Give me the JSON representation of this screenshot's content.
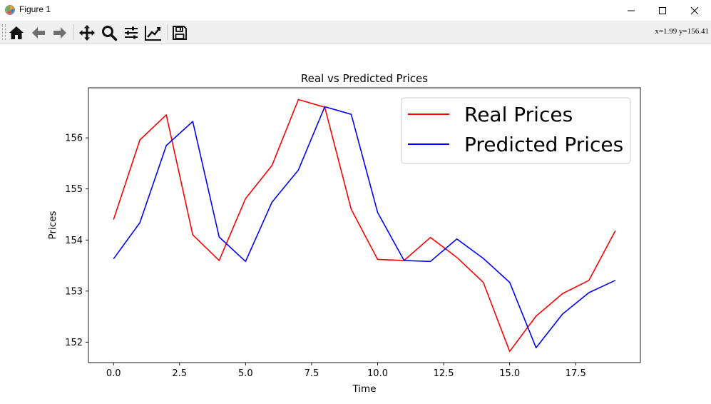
{
  "window": {
    "title": "Figure 1",
    "controls": [
      "minimize",
      "maximize",
      "close"
    ]
  },
  "toolbar": {
    "tools": [
      {
        "name": "home-icon",
        "tooltip": "Home"
      },
      {
        "name": "back-arrow-icon",
        "tooltip": "Back"
      },
      {
        "name": "forward-arrow-icon",
        "tooltip": "Forward"
      },
      {
        "name": "pan-icon",
        "tooltip": "Pan"
      },
      {
        "name": "zoom-icon",
        "tooltip": "Zoom"
      },
      {
        "name": "subplots-icon",
        "tooltip": "Subplots"
      },
      {
        "name": "axes-edit-icon",
        "tooltip": "Customize"
      },
      {
        "name": "save-icon",
        "tooltip": "Save"
      }
    ],
    "coords": "x=1.99 y=156.41"
  },
  "chart_data": {
    "type": "line",
    "title": "Real vs Predicted Prices",
    "xlabel": "Time",
    "ylabel": "Prices",
    "xlim": [
      -0.95,
      19.95
    ],
    "ylim": [
      151.6,
      156.98
    ],
    "xticks": [
      0.0,
      2.5,
      5.0,
      7.5,
      10.0,
      12.5,
      15.0,
      17.5
    ],
    "xtick_labels": [
      "0.0",
      "2.5",
      "5.0",
      "7.5",
      "10.0",
      "12.5",
      "15.0",
      "17.5"
    ],
    "yticks": [
      152,
      153,
      154,
      155,
      156
    ],
    "ytick_labels": [
      "152",
      "153",
      "154",
      "155",
      "156"
    ],
    "grid": false,
    "legend": {
      "position": "upper-right"
    },
    "x": [
      0,
      1,
      2,
      3,
      4,
      5,
      6,
      7,
      8,
      9,
      10,
      11,
      12,
      13,
      14,
      15,
      16,
      17,
      18,
      19
    ],
    "series": [
      {
        "name": "Real Prices",
        "color": "#ff0000",
        "values": [
          154.4,
          155.96,
          156.45,
          154.1,
          153.6,
          154.81,
          155.46,
          156.75,
          156.6,
          154.6,
          153.62,
          153.6,
          154.05,
          153.66,
          153.17,
          151.82,
          152.51,
          152.95,
          153.21,
          154.18
        ]
      },
      {
        "name": "Predicted Prices",
        "color": "#0000ff",
        "values": [
          153.63,
          154.34,
          155.85,
          156.32,
          154.06,
          153.58,
          154.74,
          155.37,
          156.61,
          156.46,
          154.54,
          153.6,
          153.58,
          154.02,
          153.64,
          153.17,
          151.89,
          152.55,
          152.97,
          153.21
        ]
      }
    ]
  }
}
